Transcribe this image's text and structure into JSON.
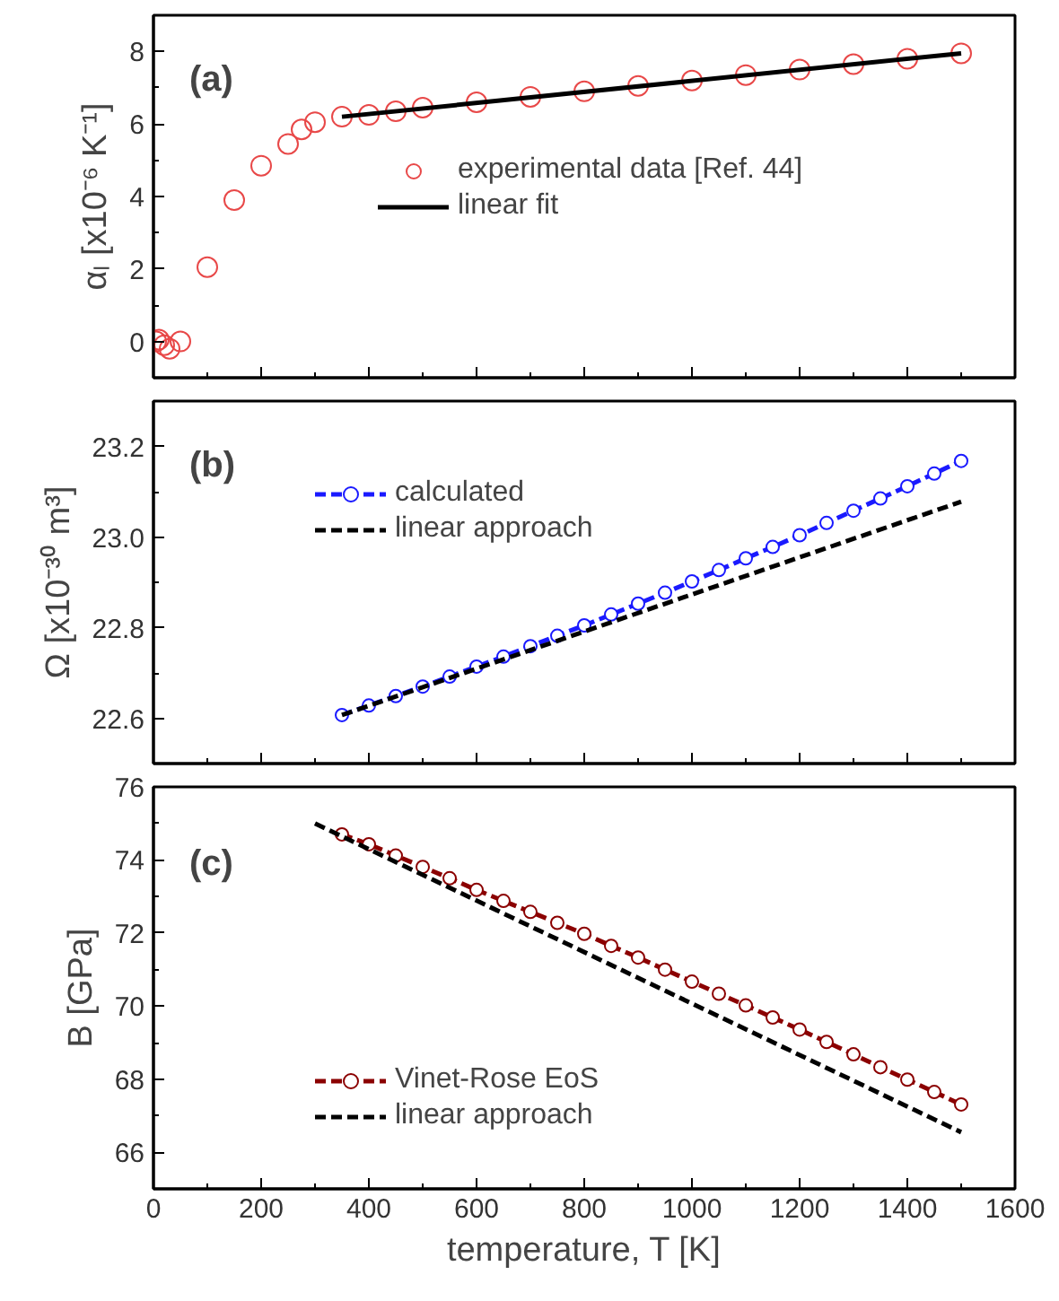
{
  "chart_data": [
    {
      "type": "line",
      "ylabel": "αₗ [x10⁻⁶ K⁻¹]",
      "annotations": [
        "(a)"
      ],
      "xlim": [
        0,
        1600
      ],
      "xticks": [
        0,
        200,
        400,
        600,
        800,
        1000,
        1200,
        1400,
        1600
      ],
      "ylim": [
        -1,
        9
      ],
      "yticks": [
        0,
        2,
        4,
        6,
        8
      ],
      "tick_labels": "y",
      "grid": false,
      "legend": "center",
      "series": [
        {
          "name": "experimental data [Ref. 44]",
          "type": "scatter",
          "marker": "circle",
          "color": "#e84848",
          "x": [
            5,
            10,
            20,
            30,
            50,
            100,
            150,
            200,
            250,
            275,
            300,
            350,
            400,
            450,
            500,
            600,
            700,
            800,
            900,
            1000,
            1100,
            1200,
            1300,
            1400,
            1500
          ],
          "values": [
            0.0,
            0.05,
            -0.1,
            -0.2,
            0.0,
            2.05,
            3.9,
            4.85,
            5.45,
            5.85,
            6.05,
            6.2,
            6.25,
            6.35,
            6.45,
            6.6,
            6.75,
            6.9,
            7.05,
            7.2,
            7.35,
            7.5,
            7.65,
            7.8,
            7.95
          ]
        },
        {
          "name": "linear fit",
          "type": "line",
          "marker": "none",
          "line_style": "solid",
          "color": "#000000",
          "x": [
            350,
            1500
          ],
          "values": [
            6.2,
            7.95
          ]
        }
      ]
    },
    {
      "type": "line",
      "ylabel": "Ω [x10⁻³⁰ m³]",
      "annotations": [
        "(b)"
      ],
      "xlim": [
        0,
        1600
      ],
      "xticks": [
        0,
        200,
        400,
        600,
        800,
        1000,
        1200,
        1400,
        1600
      ],
      "ylim": [
        22.5,
        23.3
      ],
      "yticks": [
        {
          "value": 22.6,
          "label": "22.6"
        },
        {
          "value": 22.8,
          "label": "22.8"
        },
        {
          "value": 23.0,
          "label": "23.0"
        },
        {
          "value": 23.2,
          "label": "23.2"
        }
      ],
      "tick_labels": "y",
      "grid": false,
      "legend": "top left",
      "series": [
        {
          "name": "calculated",
          "type": "line",
          "marker": "circle",
          "line_style": "dashed",
          "color": "#1a1aff",
          "x": [
            350,
            400,
            450,
            500,
            550,
            600,
            650,
            700,
            750,
            800,
            850,
            900,
            950,
            1000,
            1050,
            1100,
            1150,
            1200,
            1250,
            1300,
            1350,
            1400,
            1450,
            1500
          ],
          "values": [
            22.607,
            22.628,
            22.649,
            22.67,
            22.692,
            22.714,
            22.736,
            22.759,
            22.782,
            22.805,
            22.829,
            22.853,
            22.877,
            22.902,
            22.927,
            22.953,
            22.978,
            23.004,
            23.031,
            23.058,
            23.085,
            23.112,
            23.14,
            23.168
          ]
        },
        {
          "name": "linear approach",
          "type": "line",
          "marker": "none",
          "line_style": "dashed",
          "color": "#000000",
          "x": [
            350,
            1500
          ],
          "values": [
            22.607,
            23.078
          ]
        }
      ]
    },
    {
      "type": "line",
      "xlabel": "temperature, T [K]",
      "ylabel": "B [GPa]",
      "annotations": [
        "(c)"
      ],
      "xlim": [
        0,
        1600
      ],
      "xticks": [
        0,
        200,
        400,
        600,
        800,
        1000,
        1200,
        1400,
        1600
      ],
      "ylim": [
        65,
        76
      ],
      "yticks": [
        66,
        68,
        70,
        72,
        74,
        76
      ],
      "grid": false,
      "legend": "bottom left",
      "series": [
        {
          "name": "Vinet-Rose EoS",
          "type": "line",
          "marker": "circle",
          "line_style": "dashed",
          "color": "#8b0000",
          "x": [
            350,
            400,
            450,
            500,
            550,
            600,
            650,
            700,
            750,
            800,
            850,
            900,
            950,
            1000,
            1050,
            1100,
            1150,
            1200,
            1250,
            1300,
            1350,
            1400,
            1450,
            1500
          ],
          "values": [
            74.7,
            74.43,
            74.12,
            73.81,
            73.5,
            73.18,
            72.88,
            72.58,
            72.28,
            71.98,
            71.65,
            71.33,
            71.0,
            70.67,
            70.34,
            70.02,
            69.69,
            69.36,
            69.02,
            68.68,
            68.33,
            67.99,
            67.65,
            67.31
          ]
        },
        {
          "name": "linear approach",
          "type": "line",
          "marker": "none",
          "line_style": "dashed",
          "color": "#000000",
          "x": [
            300,
            1500
          ],
          "values": [
            75.0,
            66.55
          ]
        }
      ]
    }
  ]
}
